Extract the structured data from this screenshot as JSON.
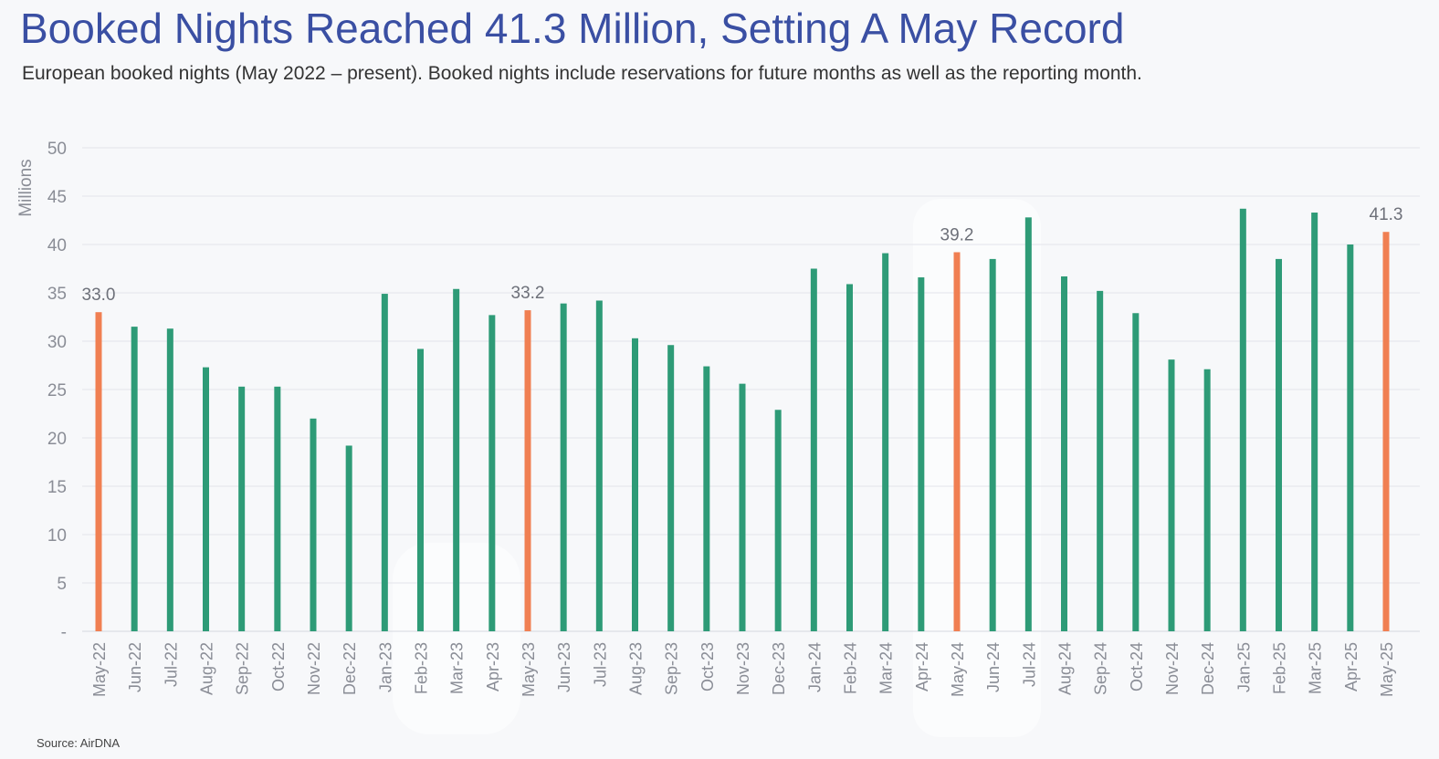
{
  "header": {
    "title": "Booked Nights Reached 41.3 Million, Setting A May Record",
    "subtitle": "European booked nights (May 2022 – present). Booked nights include reservations for future months as well as the reporting month."
  },
  "footer": {
    "source": "Source: AirDNA"
  },
  "colors": {
    "green": "#2e9b77",
    "orange": "#f07f52",
    "grid": "#e3e5ea",
    "tick_text": "#8a8d96",
    "label_text": "#6d7079"
  },
  "chart_data": {
    "type": "bar",
    "title": "Booked Nights Reached 41.3 Million, Setting A May Record",
    "subtitle": "European booked nights (May 2022 – present). Booked nights include reservations for future months as well as the reporting month.",
    "xlabel": "",
    "ylabel": "Millions",
    "ylim": [
      0,
      50
    ],
    "yticks": [
      "-",
      "5",
      "10",
      "15",
      "20",
      "25",
      "30",
      "35",
      "40",
      "45",
      "50"
    ],
    "grid": true,
    "legend": "none",
    "categories": [
      "May-22",
      "Jun-22",
      "Jul-22",
      "Aug-22",
      "Sep-22",
      "Oct-22",
      "Nov-22",
      "Dec-22",
      "Jan-23",
      "Feb-23",
      "Mar-23",
      "Apr-23",
      "May-23",
      "Jun-23",
      "Jul-23",
      "Aug-23",
      "Sep-23",
      "Oct-23",
      "Nov-23",
      "Dec-23",
      "Jan-24",
      "Feb-24",
      "Mar-24",
      "Apr-24",
      "May-24",
      "Jun-24",
      "Jul-24",
      "Aug-24",
      "Sep-24",
      "Oct-24",
      "Nov-24",
      "Dec-24",
      "Jan-25",
      "Feb-25",
      "Mar-25",
      "Apr-25",
      "May-25"
    ],
    "values": [
      33.0,
      31.5,
      31.3,
      27.3,
      25.3,
      25.3,
      22.0,
      19.2,
      34.9,
      29.2,
      35.4,
      32.7,
      33.2,
      33.9,
      34.2,
      30.3,
      29.6,
      27.4,
      25.6,
      22.9,
      37.5,
      35.9,
      39.1,
      36.6,
      39.2,
      38.5,
      42.8,
      36.7,
      35.2,
      32.9,
      28.1,
      27.1,
      43.7,
      38.5,
      43.3,
      40.0,
      41.3
    ],
    "highlighted": [
      "May-22",
      "May-23",
      "May-24",
      "May-25"
    ],
    "data_labels": [
      {
        "category": "May-22",
        "text": "33.0"
      },
      {
        "category": "May-23",
        "text": "33.2"
      },
      {
        "category": "May-24",
        "text": "39.2"
      },
      {
        "category": "May-25",
        "text": "41.3"
      }
    ]
  }
}
